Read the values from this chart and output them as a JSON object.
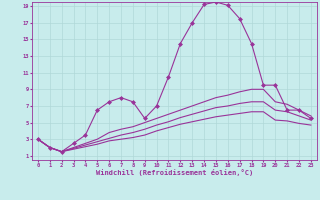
{
  "xlabel": "Windchill (Refroidissement éolien,°C)",
  "bg_color": "#c8ecec",
  "grid_color": "#b0d8d8",
  "line_color": "#993399",
  "xlim": [
    -0.5,
    23.5
  ],
  "ylim": [
    0.5,
    19.5
  ],
  "xticks": [
    0,
    1,
    2,
    3,
    4,
    5,
    6,
    7,
    8,
    9,
    10,
    11,
    12,
    13,
    14,
    15,
    16,
    17,
    18,
    19,
    20,
    21,
    22,
    23
  ],
  "yticks": [
    1,
    3,
    5,
    7,
    9,
    11,
    13,
    15,
    17,
    19
  ],
  "series": [
    {
      "x": [
        0,
        1,
        2,
        3,
        4,
        5,
        6,
        7,
        8,
        9,
        10,
        11,
        12,
        13,
        14,
        15,
        16,
        17,
        18,
        19,
        20,
        21,
        22,
        23
      ],
      "y": [
        3,
        2,
        1.5,
        2.5,
        3.5,
        6.5,
        7.5,
        8,
        7.5,
        5.5,
        7,
        10.5,
        14.5,
        17,
        19.2,
        19.5,
        19.1,
        17.5,
        14.5,
        9.5,
        9.5,
        6.5,
        6.5,
        5.5
      ],
      "marker": "D",
      "markersize": 2.0,
      "linewidth": 0.8
    },
    {
      "x": [
        0,
        1,
        2,
        3,
        4,
        5,
        6,
        7,
        8,
        9,
        10,
        11,
        12,
        13,
        14,
        15,
        16,
        17,
        18,
        19,
        20,
        21,
        22,
        23
      ],
      "y": [
        3,
        2,
        1.5,
        2.0,
        2.5,
        3.0,
        3.8,
        4.2,
        4.5,
        5.0,
        5.5,
        6.0,
        6.5,
        7.0,
        7.5,
        8.0,
        8.3,
        8.7,
        9.0,
        9.0,
        7.5,
        7.2,
        6.5,
        5.8
      ],
      "marker": null,
      "linewidth": 0.8
    },
    {
      "x": [
        0,
        1,
        2,
        3,
        4,
        5,
        6,
        7,
        8,
        9,
        10,
        11,
        12,
        13,
        14,
        15,
        16,
        17,
        18,
        19,
        20,
        21,
        22,
        23
      ],
      "y": [
        3,
        2,
        1.5,
        1.9,
        2.3,
        2.7,
        3.1,
        3.5,
        3.8,
        4.2,
        4.7,
        5.1,
        5.6,
        6.0,
        6.4,
        6.8,
        7.0,
        7.3,
        7.5,
        7.5,
        6.5,
        6.3,
        5.8,
        5.3
      ],
      "marker": null,
      "linewidth": 0.8
    },
    {
      "x": [
        0,
        1,
        2,
        3,
        4,
        5,
        6,
        7,
        8,
        9,
        10,
        11,
        12,
        13,
        14,
        15,
        16,
        17,
        18,
        19,
        20,
        21,
        22,
        23
      ],
      "y": [
        3,
        2,
        1.5,
        1.8,
        2.1,
        2.4,
        2.8,
        3.0,
        3.2,
        3.5,
        4.0,
        4.4,
        4.8,
        5.1,
        5.4,
        5.7,
        5.9,
        6.1,
        6.3,
        6.3,
        5.3,
        5.2,
        4.9,
        4.7
      ],
      "marker": null,
      "linewidth": 0.8
    }
  ]
}
